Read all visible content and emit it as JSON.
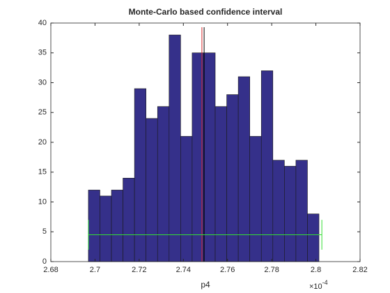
{
  "chart_data": {
    "type": "histogram",
    "title": "Monte-Carlo based confidence interval",
    "xlabel": "p4",
    "x_multiplier": "×10",
    "x_exponent": "-4",
    "bins": [
      2.697,
      2.70222,
      2.70744,
      2.71266,
      2.71788,
      2.7231,
      2.72832,
      2.73354,
      2.73876,
      2.74398,
      2.7492,
      2.75442,
      2.75964,
      2.76486,
      2.77008,
      2.7753,
      2.78052,
      2.78574,
      2.79096,
      2.79618,
      2.8014
    ],
    "values": [
      12,
      11,
      12,
      14,
      29,
      24,
      26,
      38,
      21,
      35,
      35,
      26,
      28,
      31,
      21,
      32,
      17,
      16,
      17,
      8
    ],
    "color": "#35308a",
    "edge_color": "#1a1a1a",
    "xlim": [
      2.68,
      2.82
    ],
    "xticks": [
      2.68,
      2.7,
      2.72,
      2.74,
      2.76,
      2.78,
      2.8,
      2.82
    ],
    "ylim": [
      0,
      40
    ],
    "yticks": [
      0,
      5,
      10,
      15,
      20,
      25,
      30,
      35,
      40
    ],
    "vlines": [
      {
        "x": 2.7484,
        "color": "#d62728"
      },
      {
        "x": 2.7494,
        "color": "#000000"
      }
    ],
    "interval": {
      "x": [
        2.697,
        2.8027
      ],
      "y": 4.5,
      "cap": [
        2,
        7
      ],
      "color": "#33dd33"
    }
  }
}
